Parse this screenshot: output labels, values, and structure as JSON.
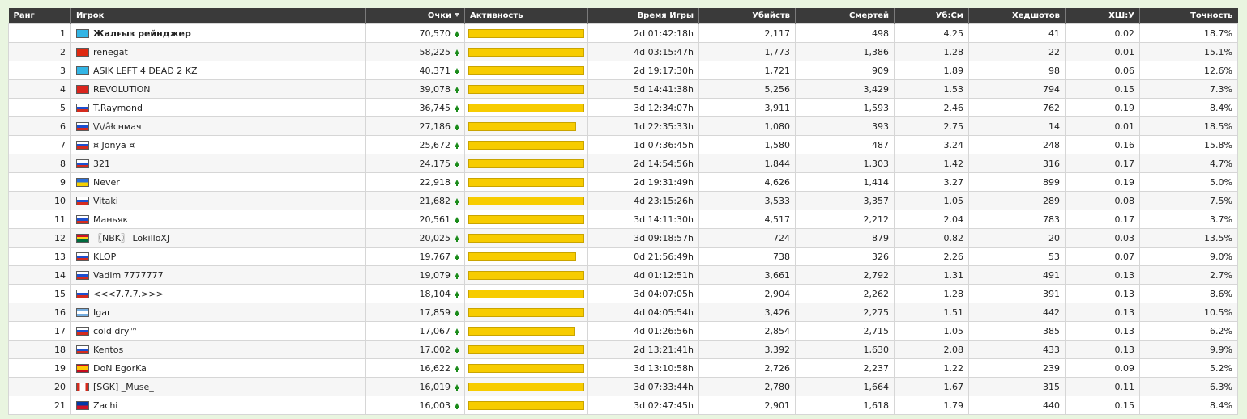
{
  "headers": {
    "rank": "Ранг",
    "player": "Игрок",
    "points": "Очки",
    "activity": "Активность",
    "time": "Время Игры",
    "kills": "Убийств",
    "deaths": "Смертей",
    "kd": "Уб:См",
    "headshots": "Хедшотов",
    "hsk": "ХШ:У",
    "accuracy": "Точность"
  },
  "colors": {
    "header_bg": "#3a3a3a",
    "activity_bar": "#f7cc00",
    "trend_up": "#1b8c1b",
    "page_bg": "#e9f5e0"
  },
  "rows": [
    {
      "rank": "1",
      "flag": "kz",
      "name": "Жалғыз рейнджер",
      "bold": true,
      "points": "70,570",
      "activity": 1.0,
      "time": "2d 01:42:18h",
      "kills": "2,117",
      "deaths": "498",
      "kd": "4.25",
      "hs": "41",
      "hsk": "0.02",
      "acc": "18.7%"
    },
    {
      "rank": "2",
      "flag": "cn",
      "name": "renegat",
      "points": "58,225",
      "activity": 1.0,
      "time": "4d 03:15:47h",
      "kills": "1,773",
      "deaths": "1,386",
      "kd": "1.28",
      "hs": "22",
      "hsk": "0.01",
      "acc": "15.1%"
    },
    {
      "rank": "3",
      "flag": "kz",
      "name": "ASIK LEFT 4 DEAD 2 KZ",
      "points": "40,371",
      "activity": 1.0,
      "time": "2d 19:17:30h",
      "kills": "1,721",
      "deaths": "909",
      "kd": "1.89",
      "hs": "98",
      "hsk": "0.06",
      "acc": "12.6%"
    },
    {
      "rank": "4",
      "flag": "vn",
      "name": "REVOLUTiON",
      "points": "39,078",
      "activity": 1.0,
      "time": "5d 14:41:38h",
      "kills": "5,256",
      "deaths": "3,429",
      "kd": "1.53",
      "hs": "794",
      "hsk": "0.15",
      "acc": "7.3%"
    },
    {
      "rank": "5",
      "flag": "ru",
      "name": "T.Raymond",
      "points": "36,745",
      "activity": 1.0,
      "time": "3d 12:34:07h",
      "kills": "3,911",
      "deaths": "1,593",
      "kd": "2.46",
      "hs": "762",
      "hsk": "0.19",
      "acc": "8.4%"
    },
    {
      "rank": "6",
      "flag": "ru",
      "name": "\\/\\/âłcнмaч",
      "points": "27,186",
      "activity": 0.93,
      "time": "1d 22:35:33h",
      "kills": "1,080",
      "deaths": "393",
      "kd": "2.75",
      "hs": "14",
      "hsk": "0.01",
      "acc": "18.5%"
    },
    {
      "rank": "7",
      "flag": "ru",
      "name": "¤ Jonya ¤",
      "points": "25,672",
      "activity": 1.0,
      "time": "1d 07:36:45h",
      "kills": "1,580",
      "deaths": "487",
      "kd": "3.24",
      "hs": "248",
      "hsk": "0.16",
      "acc": "15.8%"
    },
    {
      "rank": "8",
      "flag": "ru",
      "name": "321",
      "points": "24,175",
      "activity": 1.0,
      "time": "2d 14:54:56h",
      "kills": "1,844",
      "deaths": "1,303",
      "kd": "1.42",
      "hs": "316",
      "hsk": "0.17",
      "acc": "4.7%"
    },
    {
      "rank": "9",
      "flag": "ua",
      "name": "Never",
      "points": "22,918",
      "activity": 1.0,
      "time": "2d 19:31:49h",
      "kills": "4,626",
      "deaths": "1,414",
      "kd": "3.27",
      "hs": "899",
      "hsk": "0.19",
      "acc": "5.0%"
    },
    {
      "rank": "10",
      "flag": "ru",
      "name": "Vitaki",
      "points": "21,682",
      "activity": 1.0,
      "time": "4d 23:15:26h",
      "kills": "3,533",
      "deaths": "3,357",
      "kd": "1.05",
      "hs": "289",
      "hsk": "0.08",
      "acc": "7.5%"
    },
    {
      "rank": "11",
      "flag": "ru",
      "name": "Маньяк",
      "points": "20,561",
      "activity": 1.0,
      "time": "3d 14:11:30h",
      "kills": "4,517",
      "deaths": "2,212",
      "kd": "2.04",
      "hs": "783",
      "hsk": "0.17",
      "acc": "3.7%"
    },
    {
      "rank": "12",
      "flag": "gh",
      "name": "〖NBK〗 LokilloXJ",
      "points": "20,025",
      "activity": 1.0,
      "time": "3d 09:18:57h",
      "kills": "724",
      "deaths": "879",
      "kd": "0.82",
      "hs": "20",
      "hsk": "0.03",
      "acc": "13.5%"
    },
    {
      "rank": "13",
      "flag": "ru",
      "name": "KLOP",
      "points": "19,767",
      "activity": 0.93,
      "time": "0d 21:56:49h",
      "kills": "738",
      "deaths": "326",
      "kd": "2.26",
      "hs": "53",
      "hsk": "0.07",
      "acc": "9.0%"
    },
    {
      "rank": "14",
      "flag": "ru",
      "name": "Vadim 7777777",
      "points": "19,079",
      "activity": 1.0,
      "time": "4d 01:12:51h",
      "kills": "3,661",
      "deaths": "2,792",
      "kd": "1.31",
      "hs": "491",
      "hsk": "0.13",
      "acc": "2.7%"
    },
    {
      "rank": "15",
      "flag": "ru",
      "name": "<<<7.7.7.>>>",
      "points": "18,104",
      "activity": 1.0,
      "time": "3d 04:07:05h",
      "kills": "2,904",
      "deaths": "2,262",
      "kd": "1.28",
      "hs": "391",
      "hsk": "0.13",
      "acc": "8.6%"
    },
    {
      "rank": "16",
      "flag": "ar",
      "name": "Igar",
      "points": "17,859",
      "activity": 1.0,
      "time": "4d 04:05:54h",
      "kills": "3,426",
      "deaths": "2,275",
      "kd": "1.51",
      "hs": "442",
      "hsk": "0.13",
      "acc": "10.5%"
    },
    {
      "rank": "17",
      "flag": "ru",
      "name": "cold dry™",
      "points": "17,067",
      "activity": 0.92,
      "time": "4d 01:26:56h",
      "kills": "2,854",
      "deaths": "2,715",
      "kd": "1.05",
      "hs": "385",
      "hsk": "0.13",
      "acc": "6.2%"
    },
    {
      "rank": "18",
      "flag": "ru",
      "name": "Kentos",
      "points": "17,002",
      "activity": 1.0,
      "time": "2d 13:21:41h",
      "kills": "3,392",
      "deaths": "1,630",
      "kd": "2.08",
      "hs": "433",
      "hsk": "0.13",
      "acc": "9.9%"
    },
    {
      "rank": "19",
      "flag": "es",
      "name": "DoN EgorKa",
      "points": "16,622",
      "activity": 1.0,
      "time": "3d 13:10:58h",
      "kills": "2,726",
      "deaths": "2,237",
      "kd": "1.22",
      "hs": "239",
      "hsk": "0.09",
      "acc": "5.2%"
    },
    {
      "rank": "20",
      "flag": "ca",
      "name": "[SGK] _Muse_",
      "points": "16,019",
      "activity": 1.0,
      "time": "3d 07:33:44h",
      "kills": "2,780",
      "deaths": "1,664",
      "kd": "1.67",
      "hs": "315",
      "hsk": "0.11",
      "acc": "6.3%"
    },
    {
      "rank": "21",
      "flag": "ph",
      "name": "Zachi",
      "points": "16,003",
      "activity": 1.0,
      "time": "3d 02:47:45h",
      "kills": "2,901",
      "deaths": "1,618",
      "kd": "1.79",
      "hs": "440",
      "hsk": "0.15",
      "acc": "8.4%"
    }
  ]
}
